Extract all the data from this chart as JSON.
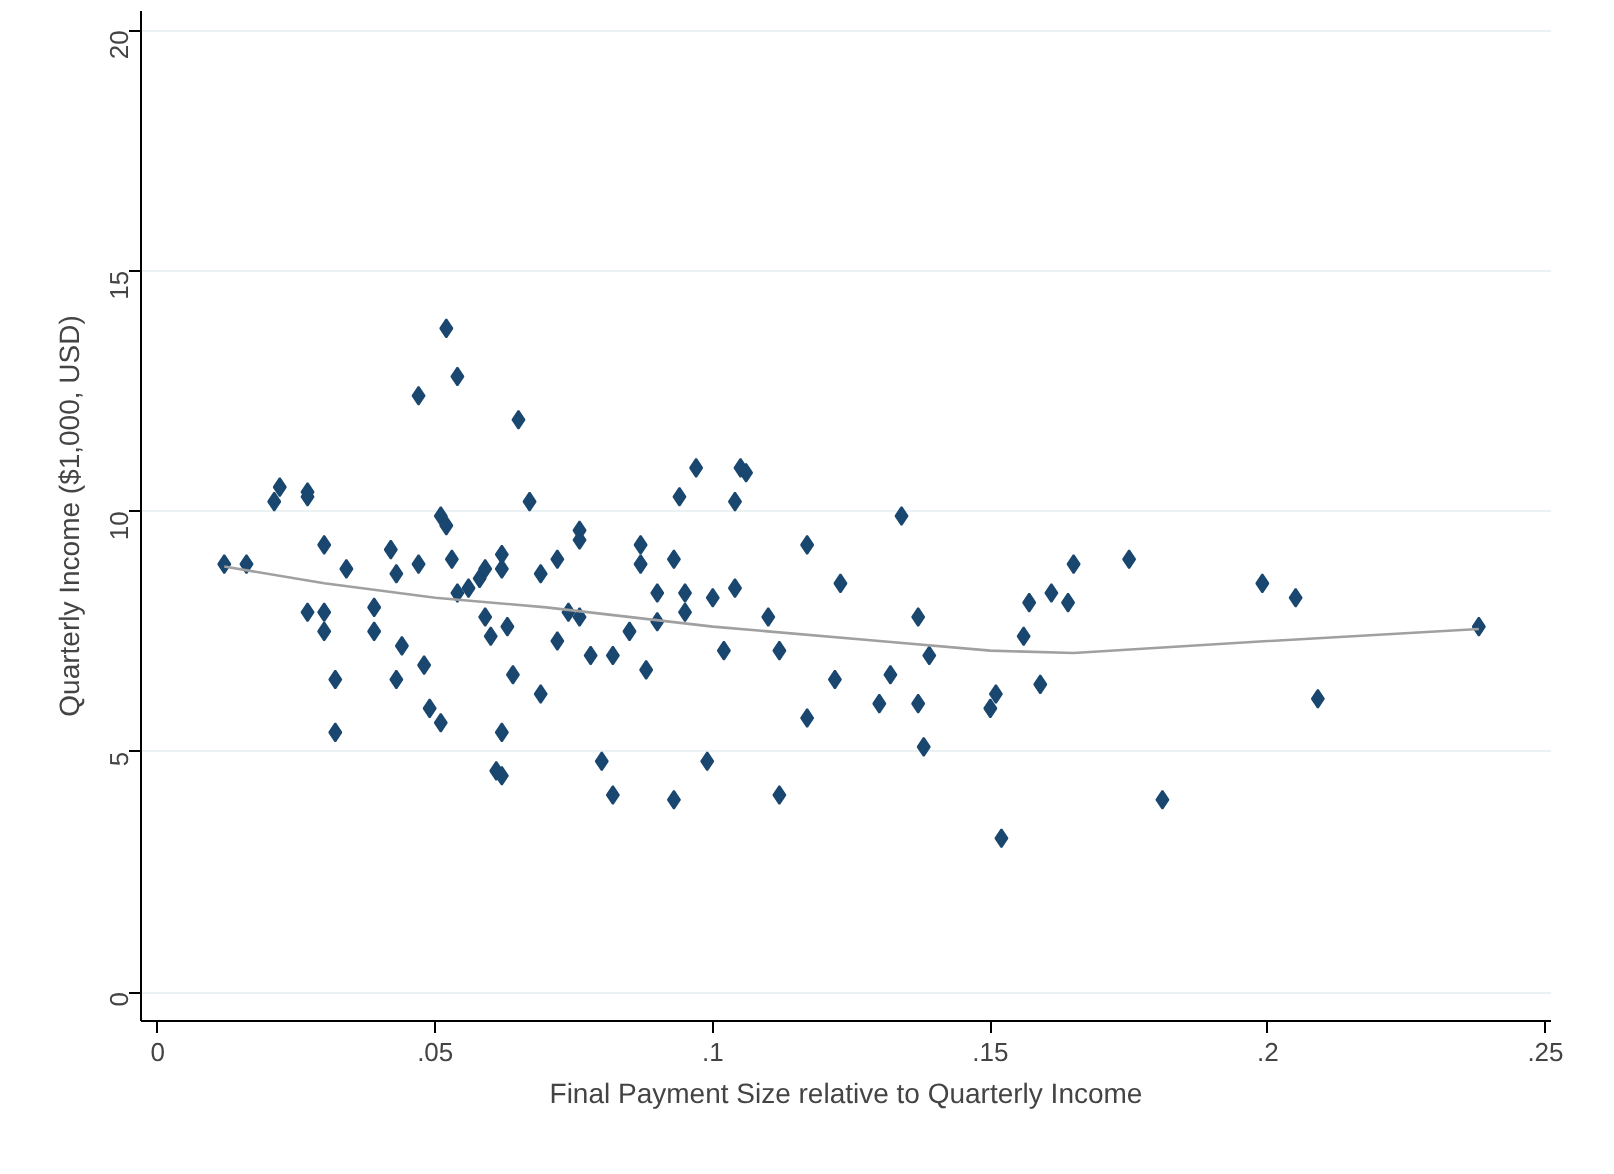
{
  "chart_data": {
    "type": "scatter",
    "xlabel": "Final Payment Size relative to Quarterly Income",
    "ylabel": "Quarterly Income ($1,000, USD)",
    "xlim": [
      -0.003,
      0.251
    ],
    "ylim": [
      -0.6,
      20.4
    ],
    "xticks": [
      {
        "value": 0,
        "label": "0"
      },
      {
        "value": 0.05,
        "label": ".05"
      },
      {
        "value": 0.1,
        "label": ".1"
      },
      {
        "value": 0.15,
        "label": ".15"
      },
      {
        "value": 0.2,
        "label": ".2"
      },
      {
        "value": 0.25,
        "label": ".25"
      }
    ],
    "yticks": [
      0,
      5,
      10,
      15,
      20
    ],
    "grid": "y",
    "marker": "diamond",
    "series": [
      {
        "color": "#1a476f",
        "x": [
          0.012,
          0.016,
          0.021,
          0.022,
          0.027,
          0.027,
          0.03,
          0.027,
          0.03,
          0.03,
          0.032,
          0.032,
          0.034,
          0.039,
          0.039,
          0.042,
          0.043,
          0.043,
          0.044,
          0.047,
          0.047,
          0.048,
          0.049,
          0.051,
          0.051,
          0.052,
          0.052,
          0.054,
          0.053,
          0.054,
          0.056,
          0.058,
          0.059,
          0.059,
          0.06,
          0.062,
          0.061,
          0.062,
          0.062,
          0.062,
          0.063,
          0.064,
          0.065,
          0.067,
          0.069,
          0.069,
          0.072,
          0.072,
          0.074,
          0.076,
          0.076,
          0.076,
          0.078,
          0.08,
          0.082,
          0.082,
          0.085,
          0.087,
          0.087,
          0.088,
          0.09,
          0.09,
          0.093,
          0.094,
          0.093,
          0.095,
          0.095,
          0.097,
          0.099,
          0.1,
          0.102,
          0.104,
          0.104,
          0.105,
          0.106,
          0.11,
          0.112,
          0.112,
          0.117,
          0.117,
          0.123,
          0.122,
          0.13,
          0.132,
          0.134,
          0.137,
          0.137,
          0.138,
          0.139,
          0.15,
          0.151,
          0.152,
          0.156,
          0.157,
          0.159,
          0.161,
          0.164,
          0.165,
          0.175,
          0.181,
          0.199,
          0.205,
          0.209,
          0.238
        ],
        "values": [
          8.9,
          8.9,
          10.2,
          10.5,
          10.4,
          10.3,
          9.3,
          7.9,
          7.9,
          7.5,
          6.5,
          5.4,
          8.8,
          8.0,
          7.5,
          9.2,
          6.5,
          8.7,
          7.2,
          12.4,
          8.9,
          6.8,
          5.9,
          5.6,
          9.9,
          9.7,
          13.8,
          12.8,
          9.0,
          8.3,
          8.4,
          8.6,
          7.8,
          8.8,
          7.4,
          8.8,
          4.6,
          4.5,
          5.4,
          9.1,
          7.6,
          6.6,
          11.9,
          10.2,
          8.7,
          6.2,
          9.0,
          7.3,
          7.9,
          9.6,
          9.4,
          7.8,
          7.0,
          4.8,
          4.1,
          7.0,
          7.5,
          9.3,
          8.9,
          6.7,
          8.3,
          7.7,
          9.0,
          10.3,
          4.0,
          8.3,
          7.9,
          10.9,
          4.8,
          8.2,
          7.1,
          10.2,
          8.4,
          10.9,
          10.8,
          7.8,
          7.1,
          4.1,
          9.3,
          5.7,
          8.5,
          6.5,
          6.0,
          6.6,
          9.9,
          7.8,
          6.0,
          5.1,
          7.0,
          5.9,
          6.2,
          3.2,
          7.4,
          8.1,
          6.4,
          8.3,
          8.1,
          8.9,
          9.0,
          4.0,
          8.5,
          8.2,
          6.1,
          7.6
        ]
      },
      {
        "type": "line",
        "color": "#a0a0a0",
        "marker": "none",
        "line_style": "solid",
        "x": [
          0.012,
          0.03,
          0.05,
          0.07,
          0.1,
          0.13,
          0.15,
          0.165,
          0.2,
          0.238
        ],
        "values": [
          8.85,
          8.5,
          8.2,
          8.0,
          7.6,
          7.3,
          7.1,
          7.05,
          7.3,
          7.55
        ]
      }
    ]
  }
}
